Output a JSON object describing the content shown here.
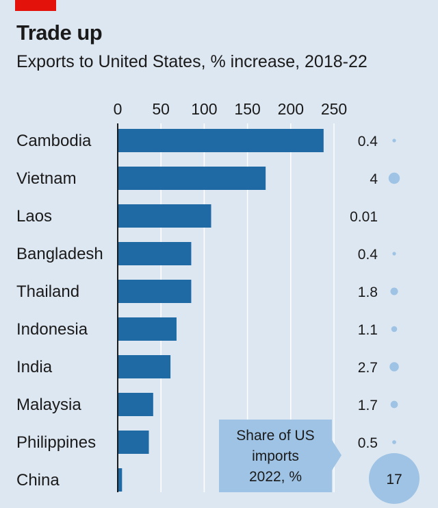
{
  "colors": {
    "background": "#dde7f1",
    "bar": "#1f6aa5",
    "bubble": "#9ec3e4",
    "gridline": "#ffffff",
    "brand_red": "#e3120b",
    "callout_bg": "#9ec3e4"
  },
  "chart_data": {
    "type": "bar",
    "orientation": "horizontal",
    "title": "Trade up",
    "subtitle": "Exports to United States, % increase, 2018-22",
    "xlim": [
      0,
      250
    ],
    "xticks": [
      0,
      50,
      100,
      150,
      200,
      250
    ],
    "grid": true,
    "categories": [
      "Cambodia",
      "Vietnam",
      "Laos",
      "Bangladesh",
      "Thailand",
      "Indonesia",
      "India",
      "Malaysia",
      "Philippines",
      "China"
    ],
    "values": [
      238,
      171,
      108,
      85,
      85,
      68,
      61,
      41,
      36,
      5
    ],
    "share_of_us_imports": {
      "label_lines": [
        "Share of US",
        "imports",
        "2022, %"
      ],
      "values": [
        "0.4",
        "4",
        "0.01",
        "0.4",
        "1.8",
        "1.1",
        "2.7",
        "1.7",
        "0.5",
        "17"
      ],
      "numeric": [
        0.4,
        4,
        0.01,
        0.4,
        1.8,
        1.1,
        2.7,
        1.7,
        0.5,
        17
      ]
    }
  }
}
